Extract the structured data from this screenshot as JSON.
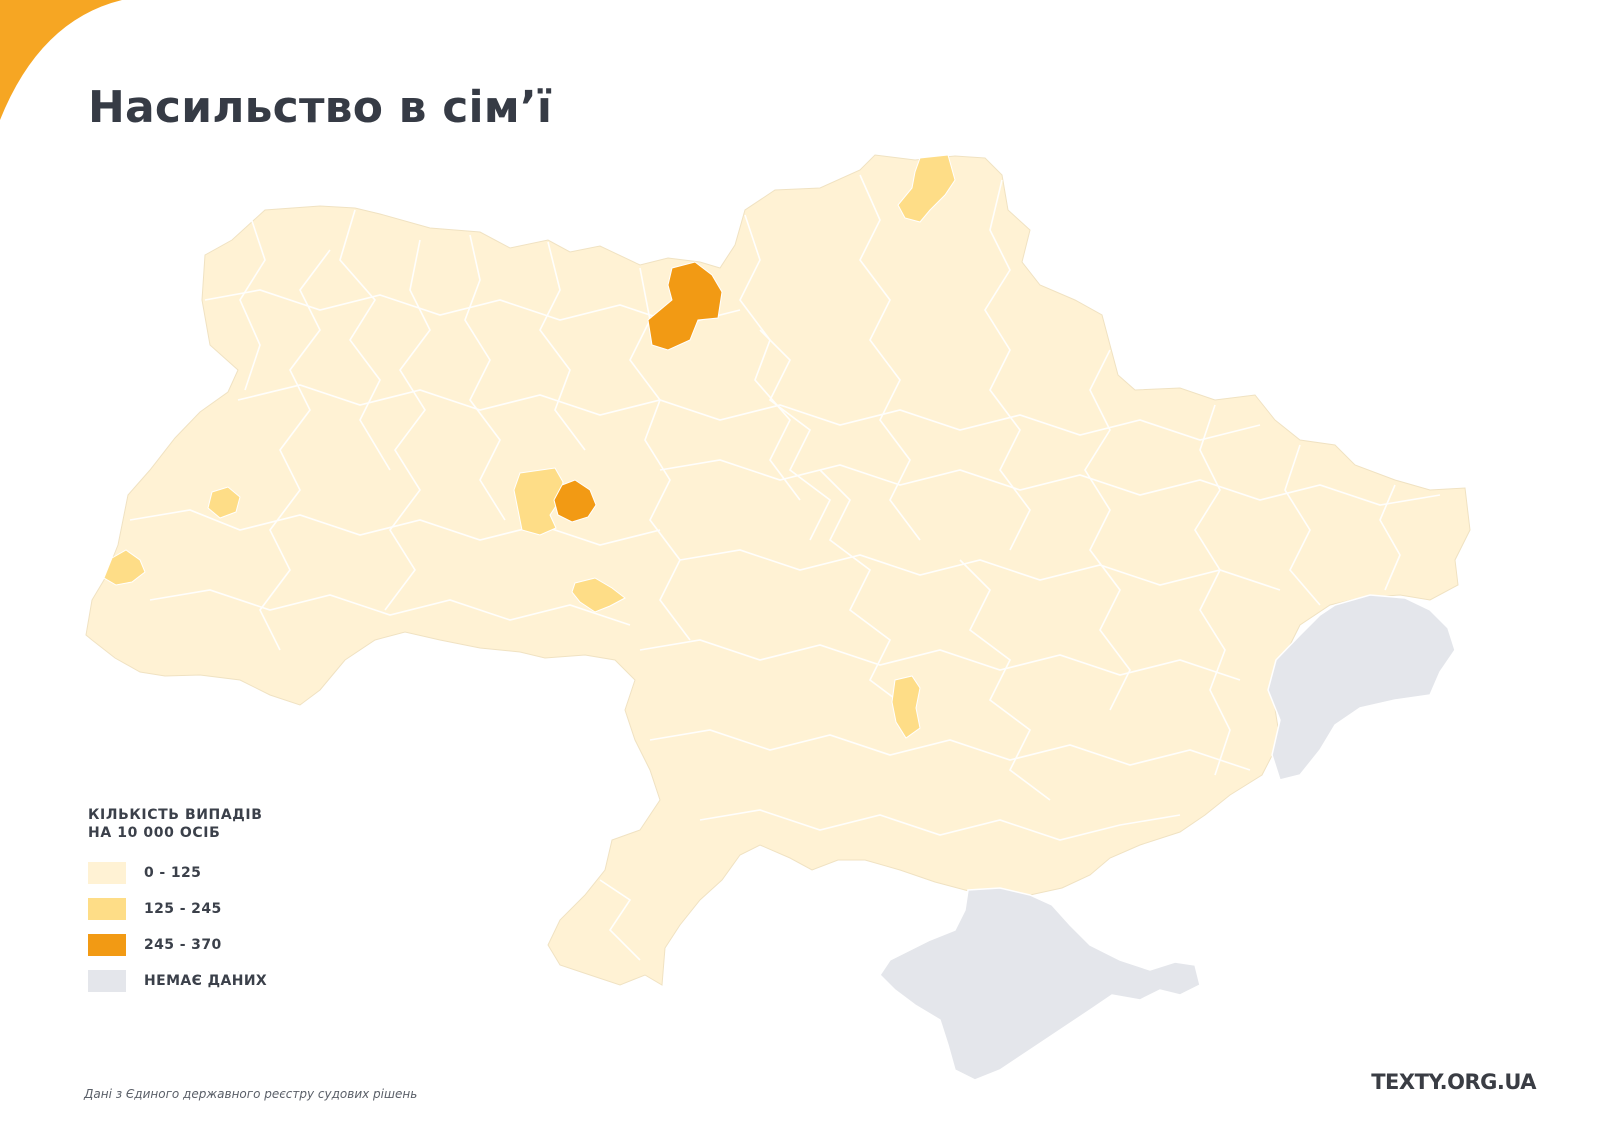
{
  "header": {
    "title": "Насильство в сім’ї"
  },
  "legend": {
    "title_line1": "КІЛЬКІСТЬ ВИПАДІВ",
    "title_line2": "НА 10 000 ОСІБ",
    "items": [
      {
        "label": "0 - 125",
        "color": "#fff2d4"
      },
      {
        "label": "125 - 245",
        "color": "#fedd87"
      },
      {
        "label": "245 - 370",
        "color": "#f29a14"
      },
      {
        "label": "НЕМАЄ ДАНИХ",
        "color": "#e4e6eb"
      }
    ]
  },
  "footer": {
    "source": "Дані з Єдиного державного реєстру судових рішень",
    "brand": "TEXTY.ORG.UA"
  },
  "colors": {
    "accent_corner": "#f6a623",
    "low": "#fff2d4",
    "medium": "#fedd87",
    "high": "#f29a14",
    "no_data": "#e4e6eb",
    "border": "#ffffff"
  }
}
